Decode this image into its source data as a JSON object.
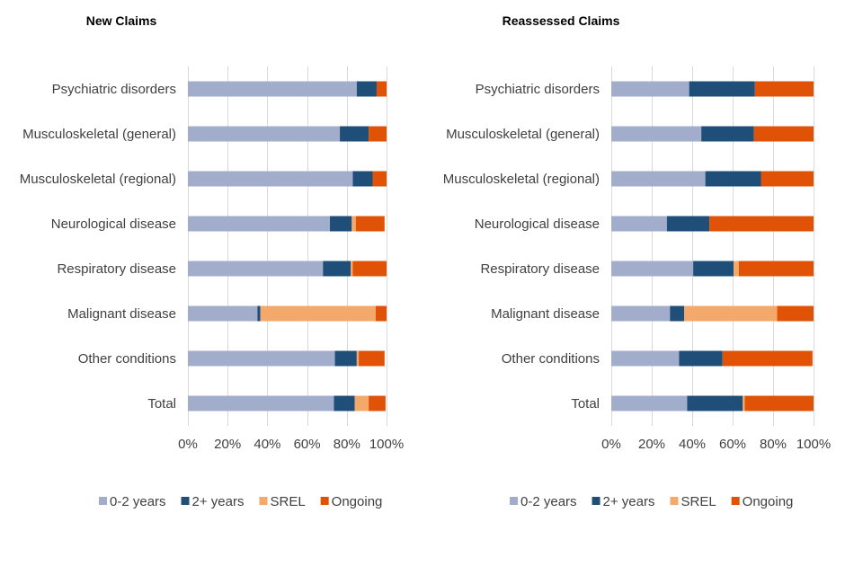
{
  "chart_data": [
    {
      "type": "bar",
      "orientation": "horizontal",
      "stacked": true,
      "title": "New Claims",
      "categories": [
        "Psychiatric disorders",
        "Musculoskeletal (general)",
        "Musculoskeletal (regional)",
        "Neurological disease",
        "Respiratory disease",
        "Malignant disease",
        "Other conditions",
        "Total"
      ],
      "series": [
        {
          "name": "0-2 years",
          "color": "#a2adcc",
          "values": [
            85,
            76.5,
            83,
            71.5,
            68,
            35,
            74,
            73.5
          ]
        },
        {
          "name": "2+ years",
          "color": "#1f4e79",
          "values": [
            10,
            14.5,
            10,
            11,
            14,
            1.5,
            11,
            10.5
          ]
        },
        {
          "name": "SREL",
          "color": "#f4a96a",
          "values": [
            0,
            0,
            0,
            2,
            1,
            58,
            1,
            7
          ]
        },
        {
          "name": "Ongoing",
          "color": "#e05206",
          "values": [
            5,
            9,
            7,
            14.5,
            17,
            5.5,
            13,
            8.5
          ]
        }
      ],
      "xlim": [
        0,
        100
      ],
      "xticks": [
        "0%",
        "20%",
        "40%",
        "60%",
        "80%",
        "100%"
      ],
      "grid": true,
      "legend": "bottom"
    },
    {
      "type": "bar",
      "orientation": "horizontal",
      "stacked": true,
      "title": "Reassessed Claims",
      "categories": [
        "Psychiatric disorders",
        "Musculoskeletal (general)",
        "Musculoskeletal (regional)",
        "Neurological disease",
        "Respiratory disease",
        "Malignant disease",
        "Other conditions",
        "Total"
      ],
      "series": [
        {
          "name": "0-2 years",
          "color": "#a2adcc",
          "values": [
            38.5,
            44.5,
            46.5,
            27.5,
            40.5,
            29,
            33.5,
            37.5
          ]
        },
        {
          "name": "2+ years",
          "color": "#1f4e79",
          "values": [
            32.5,
            26,
            27.5,
            21,
            20,
            7,
            21.5,
            27.5
          ]
        },
        {
          "name": "SREL",
          "color": "#f4a96a",
          "values": [
            0,
            0,
            0,
            0,
            2.5,
            46,
            0,
            1
          ]
        },
        {
          "name": "Ongoing",
          "color": "#e05206",
          "values": [
            29,
            29.5,
            26,
            51.5,
            37,
            18,
            44.5,
            34
          ]
        }
      ],
      "xlim": [
        0,
        100
      ],
      "xticks": [
        "0%",
        "20%",
        "40%",
        "60%",
        "80%",
        "100%"
      ],
      "grid": true,
      "legend": "bottom"
    }
  ]
}
